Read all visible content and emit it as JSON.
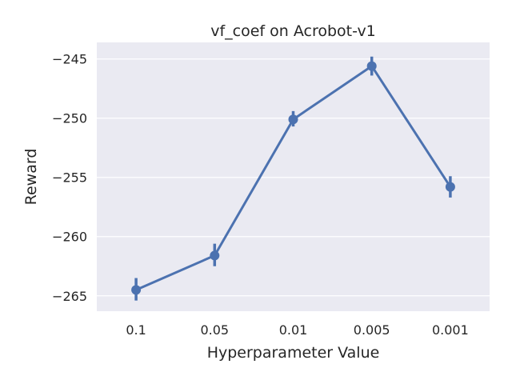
{
  "chart_data": {
    "type": "line",
    "title": "vf_coef on Acrobot-v1",
    "xlabel": "Hyperparameter Value",
    "ylabel": "Reward",
    "categories": [
      "0.1",
      "0.05",
      "0.01",
      "0.005",
      "0.001"
    ],
    "series": [
      {
        "values": [
          -264.5,
          -261.6,
          -250.1,
          -245.6,
          -255.8
        ],
        "ci_low": [
          -265.4,
          -262.5,
          -250.7,
          -246.4,
          -256.7
        ],
        "ci_high": [
          -263.5,
          -260.6,
          -249.4,
          -244.8,
          -254.9
        ],
        "color": "#4c72b0"
      }
    ],
    "yticks": [
      -265,
      -260,
      -255,
      -250,
      -245
    ],
    "ytick_labels": [
      "−265",
      "−260",
      "−255",
      "−250",
      "−245"
    ],
    "ylim": [
      -266.3,
      -243.6
    ],
    "grid": "y",
    "background": "#eaeaf2",
    "grid_color": "#ffffff"
  }
}
